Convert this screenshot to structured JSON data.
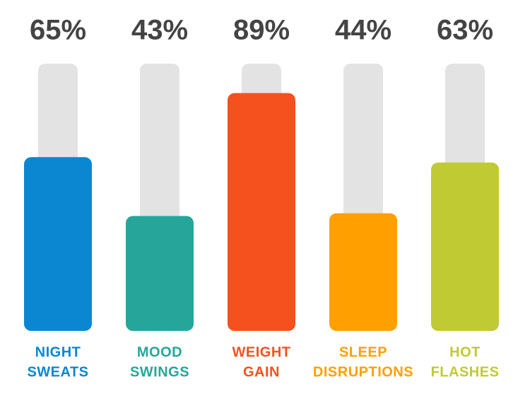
{
  "chart_data": {
    "type": "bar",
    "categories": [
      [
        "NIGHT",
        "SWEATS"
      ],
      [
        "MOOD",
        "SWINGS"
      ],
      [
        "WEIGHT",
        "GAIN"
      ],
      [
        "SLEEP",
        "DISRUPTIONS"
      ],
      [
        "HOT",
        "FLASHES"
      ]
    ],
    "values": [
      65,
      43,
      89,
      44,
      63
    ],
    "value_labels": [
      "65%",
      "43%",
      "89%",
      "44%",
      "63%"
    ],
    "colors": [
      "#0a87d0",
      "#26a69a",
      "#f4511e",
      "#ffa000",
      "#c0ca33"
    ],
    "ylim": [
      0,
      100
    ]
  }
}
